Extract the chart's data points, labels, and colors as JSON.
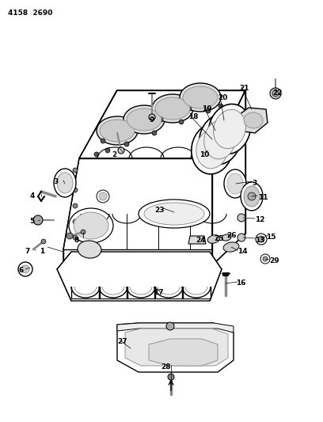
{
  "bg_color": "#ffffff",
  "header": "4158  2690",
  "fig_w": 4.08,
  "fig_h": 5.33,
  "dpi": 100,
  "labels": [
    [
      "1",
      56,
      318,
      "right"
    ],
    [
      "2",
      148,
      196,
      "right"
    ],
    [
      "3",
      74,
      230,
      "right"
    ],
    [
      "3",
      318,
      231,
      "left"
    ],
    [
      "4",
      44,
      247,
      "right"
    ],
    [
      "5",
      44,
      280,
      "right"
    ],
    [
      "6",
      30,
      342,
      "right"
    ],
    [
      "7",
      38,
      318,
      "right"
    ],
    [
      "8",
      100,
      303,
      "right"
    ],
    [
      "9",
      192,
      152,
      "center"
    ],
    [
      "10",
      252,
      196,
      "left"
    ],
    [
      "11",
      326,
      249,
      "left"
    ],
    [
      "12",
      322,
      278,
      "left"
    ],
    [
      "13",
      322,
      303,
      "left"
    ],
    [
      "14",
      300,
      318,
      "left"
    ],
    [
      "15",
      336,
      299,
      "left"
    ],
    [
      "16",
      298,
      358,
      "left"
    ],
    [
      "17",
      200,
      370,
      "center"
    ],
    [
      "18",
      238,
      148,
      "left"
    ],
    [
      "19",
      255,
      138,
      "left"
    ],
    [
      "20",
      275,
      124,
      "left"
    ],
    [
      "21",
      302,
      112,
      "left"
    ],
    [
      "22",
      344,
      118,
      "left"
    ],
    [
      "23",
      202,
      265,
      "center"
    ],
    [
      "24",
      254,
      303,
      "center"
    ],
    [
      "25",
      270,
      301,
      "left"
    ],
    [
      "26",
      286,
      298,
      "left"
    ],
    [
      "27",
      148,
      432,
      "left"
    ],
    [
      "28",
      210,
      463,
      "center"
    ],
    [
      "29",
      340,
      330,
      "left"
    ]
  ]
}
